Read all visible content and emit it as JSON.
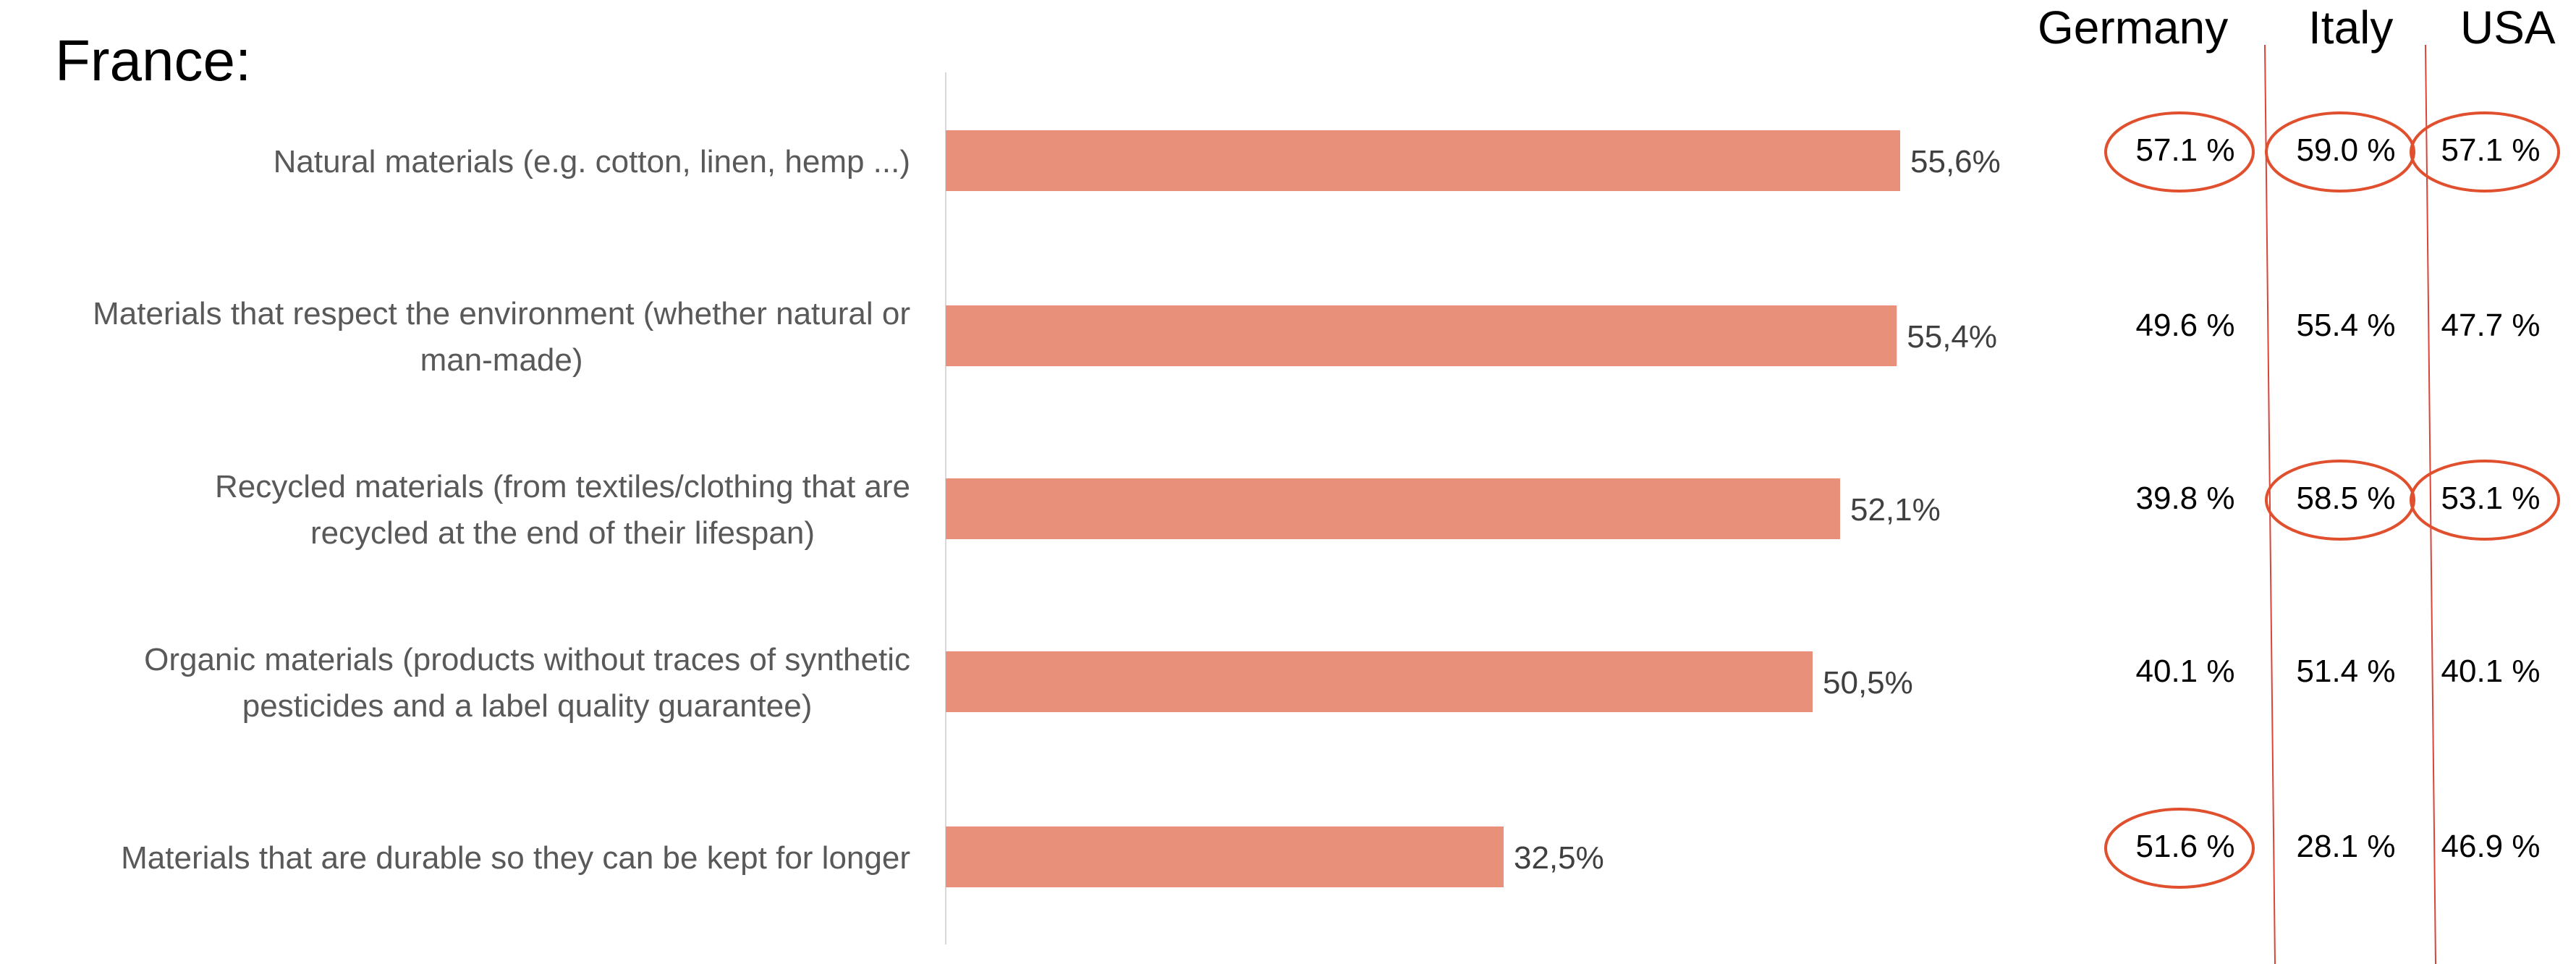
{
  "page_title": "France:",
  "columns": [
    "Germany",
    "Italy",
    "USA"
  ],
  "accent_color": "#E8907A",
  "divider_color": "#D9453B",
  "circle_color": "#E0502E",
  "chart_data": {
    "type": "bar",
    "orientation": "horizontal",
    "title": "France:",
    "categories": [
      [
        "Natural materials (e.g. cotton, linen, hemp ...)"
      ],
      [
        "Materials that respect the environment (whether natural or",
        "man-made)"
      ],
      [
        "Recycled materials (from textiles/clothing that are",
        "recycled at the end of their lifespan)"
      ],
      [
        "Organic materials (products without traces of synthetic",
        "pesticides and a label quality guarantee)"
      ],
      [
        "Materials that are durable so they can be kept for longer"
      ]
    ],
    "values": [
      55.6,
      55.4,
      52.1,
      50.5,
      32.5
    ],
    "value_labels": [
      "55,6%",
      "55,4%",
      "52,1%",
      "50,5%",
      "32,5%"
    ],
    "xlim": [
      0,
      100
    ],
    "grid": false,
    "bar_color": "#E8907A"
  },
  "comparison_table": {
    "columns": [
      "Germany",
      "Italy",
      "USA"
    ],
    "rows": [
      [
        "57.1 %",
        "59.0 %",
        "57.1 %"
      ],
      [
        "49.6 %",
        "55.4 %",
        "47.7 %"
      ],
      [
        "39.8 %",
        "58.5 %",
        "53.1 %"
      ],
      [
        "40.1 %",
        "51.4 %",
        "40.1 %"
      ],
      [
        "51.6 %",
        "28.1 %",
        "46.9 %"
      ]
    ],
    "circled": [
      [
        true,
        true,
        true
      ],
      [
        false,
        false,
        false
      ],
      [
        false,
        true,
        true
      ],
      [
        false,
        false,
        false
      ],
      [
        true,
        false,
        false
      ]
    ]
  }
}
